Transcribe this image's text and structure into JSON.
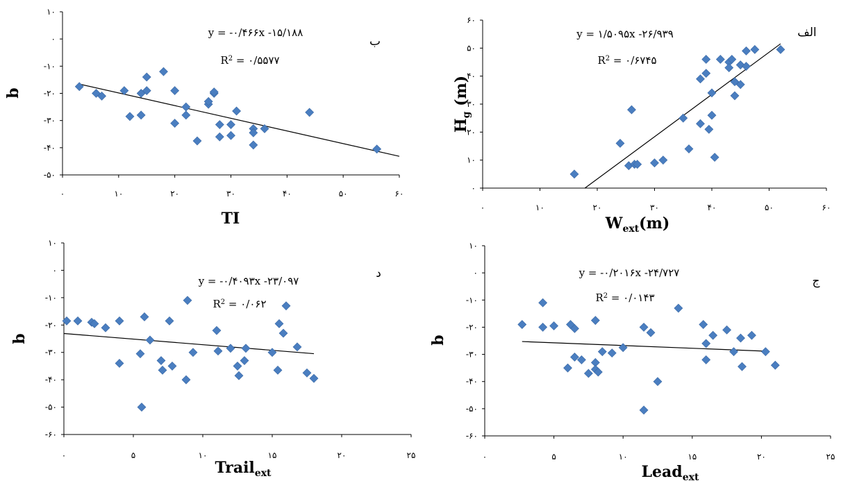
{
  "colors": {
    "marker": "#4a7ec0",
    "marker_stroke": "#3a68a4",
    "line": "#000000",
    "axis": "#000000"
  },
  "chart_data": [
    {
      "id": "b",
      "type": "scatter",
      "panel_label": "ب",
      "xlabel": "TI",
      "ylabel": "b",
      "xlim": [
        0,
        60
      ],
      "ylim": [
        -50,
        10
      ],
      "xticks": [
        0,
        10,
        20,
        30,
        40,
        50,
        60
      ],
      "yticks": [
        10,
        0,
        -10,
        -20,
        -30,
        -40,
        -50
      ],
      "xtick_labels": [
        "۰",
        "۱۰",
        "۲۰",
        "۳۰",
        "۴۰",
        "۵۰",
        "۶۰"
      ],
      "ytick_labels": [
        "۱۰",
        "۰",
        "-۱۰",
        "-۲۰",
        "-۳۰",
        "-۴۰",
        "-۵۰"
      ],
      "equation": "y = -۰/۴۶۶x -۱۵/۱۸۸",
      "r2_prefix": "R",
      "r2_value": " = ۰/۵۵۷۷",
      "trendline": {
        "slope": -0.466,
        "intercept": -15.188,
        "x_range": [
          3,
          60
        ]
      },
      "points": [
        [
          3,
          -17.5
        ],
        [
          6,
          -20
        ],
        [
          7,
          -21
        ],
        [
          11,
          -19
        ],
        [
          12,
          -28.5
        ],
        [
          14,
          -20
        ],
        [
          14,
          -28
        ],
        [
          15,
          -14
        ],
        [
          15,
          -19
        ],
        [
          18,
          -12
        ],
        [
          20,
          -19
        ],
        [
          20,
          -31
        ],
        [
          22,
          -25
        ],
        [
          22,
          -28
        ],
        [
          24,
          -37.5
        ],
        [
          26,
          -24
        ],
        [
          26,
          -23
        ],
        [
          27,
          -20
        ],
        [
          27,
          -19.5
        ],
        [
          28,
          -31.5
        ],
        [
          28,
          -36
        ],
        [
          30,
          -31.5
        ],
        [
          30,
          -35.5
        ],
        [
          31,
          -26.5
        ],
        [
          34,
          -33
        ],
        [
          34,
          -34.5
        ],
        [
          34,
          -39
        ],
        [
          36,
          -33
        ],
        [
          44,
          -27
        ],
        [
          56,
          -40.5
        ]
      ]
    },
    {
      "id": "alef",
      "type": "scatter",
      "panel_label": "الف",
      "xlabel": "W",
      "xlabel_sub": "ext",
      "xlabel_suffix": "(m)",
      "ylabel": "H",
      "ylabel_sub": "g",
      "ylabel_suffix": " (m)",
      "xlim": [
        0,
        60
      ],
      "ylim": [
        0,
        60
      ],
      "xticks": [
        0,
        10,
        20,
        30,
        40,
        50,
        60
      ],
      "yticks": [
        0,
        10,
        20,
        30,
        40,
        50,
        60
      ],
      "xtick_labels": [
        "۰",
        "۱۰",
        "۲۰",
        "۳۰",
        "۴۰",
        "۵۰",
        "۶۰"
      ],
      "ytick_labels": [
        "۰",
        "۱۰",
        "۲۰",
        "۳۰",
        "۴۰",
        "۵۰",
        "۶۰"
      ],
      "equation": "y = ۱/۵۰۹۵x -۲۶/۹۳۹",
      "r2_prefix": "R",
      "r2_value": " = ۰/۶۷۴۵",
      "trendline": {
        "slope": 1.5095,
        "intercept": -26.939,
        "x_range": [
          17.85,
          52
        ]
      },
      "points": [
        [
          16,
          5
        ],
        [
          24,
          16
        ],
        [
          25.5,
          8
        ],
        [
          26,
          28
        ],
        [
          26.5,
          8.5
        ],
        [
          27,
          8.5
        ],
        [
          30,
          9
        ],
        [
          31.5,
          10
        ],
        [
          35,
          25
        ],
        [
          36,
          14
        ],
        [
          38,
          39
        ],
        [
          38,
          23
        ],
        [
          39,
          46
        ],
        [
          39,
          41
        ],
        [
          39.5,
          21
        ],
        [
          40,
          34
        ],
        [
          40,
          26
        ],
        [
          40.5,
          11
        ],
        [
          41.5,
          46
        ],
        [
          43,
          45
        ],
        [
          43,
          43
        ],
        [
          43.5,
          46
        ],
        [
          44,
          38
        ],
        [
          44,
          33
        ],
        [
          45,
          44
        ],
        [
          45,
          37
        ],
        [
          46,
          49
        ],
        [
          46,
          43.5
        ],
        [
          47.5,
          49.5
        ],
        [
          52,
          49.5
        ]
      ]
    },
    {
      "id": "dal",
      "type": "scatter",
      "panel_label": "د",
      "xlabel": "Trail",
      "xlabel_sub": "ext",
      "xlabel_suffix": "",
      "ylabel": "b",
      "xlim": [
        0,
        25
      ],
      "ylim": [
        -60,
        10
      ],
      "xticks": [
        0,
        5,
        10,
        15,
        20,
        25
      ],
      "yticks": [
        10,
        0,
        -10,
        -20,
        -30,
        -40,
        -50,
        -60
      ],
      "xtick_labels": [
        "۰",
        "۵",
        "۱۰",
        "۱۵",
        "۲۰",
        "۲۵"
      ],
      "ytick_labels": [
        "۱۰",
        "۰",
        "-۱۰",
        "-۲۰",
        "-۳۰",
        "-۴۰",
        "-۵۰",
        "-۶۰"
      ],
      "equation": "y = -۰/۴۰۹۳x -۲۳/۰۹۷",
      "r2_prefix": "R",
      "r2_value": " = ۰/۰۶۲",
      "trendline": {
        "slope": -0.4093,
        "intercept": -23.097,
        "x_range": [
          0,
          18
        ]
      },
      "points": [
        [
          0.2,
          -18.5
        ],
        [
          1,
          -18.5
        ],
        [
          2,
          -19
        ],
        [
          2.2,
          -19.5
        ],
        [
          3,
          -21
        ],
        [
          4,
          -18.5
        ],
        [
          4,
          -34
        ],
        [
          5.5,
          -30.5
        ],
        [
          5.8,
          -17
        ],
        [
          6.2,
          -25.5
        ],
        [
          7,
          -33
        ],
        [
          7.1,
          -36.5
        ],
        [
          7.6,
          -18.5
        ],
        [
          7.8,
          -35
        ],
        [
          8.8,
          -40
        ],
        [
          8.9,
          -11
        ],
        [
          9.3,
          -30
        ],
        [
          11,
          -22
        ],
        [
          11.1,
          -29.5
        ],
        [
          12,
          -28.5
        ],
        [
          12.5,
          -35
        ],
        [
          12.6,
          -38.5
        ],
        [
          13,
          -33
        ],
        [
          13.1,
          -28.5
        ],
        [
          15,
          -30
        ],
        [
          15.4,
          -36.5
        ],
        [
          15.5,
          -19.5
        ],
        [
          15.8,
          -23
        ],
        [
          16,
          -13
        ],
        [
          16.8,
          -28
        ],
        [
          17.5,
          -37.5
        ],
        [
          18,
          -39.5
        ],
        [
          5.6,
          -50
        ]
      ]
    },
    {
      "id": "jim",
      "type": "scatter",
      "panel_label": "ج",
      "xlabel": "Lead",
      "xlabel_sub": "ext",
      "xlabel_suffix": "",
      "ylabel": "b",
      "xlim": [
        0,
        25
      ],
      "ylim": [
        -60,
        10
      ],
      "xticks": [
        0,
        5,
        10,
        15,
        20,
        25
      ],
      "yticks": [
        10,
        0,
        -10,
        -20,
        -30,
        -40,
        -50,
        -60
      ],
      "xtick_labels": [
        "۰",
        "۵",
        "۱۰",
        "۱۵",
        "۲۰",
        "۲۵"
      ],
      "ytick_labels": [
        "۱۰",
        "۰",
        "-۱۰",
        "-۲۰",
        "-۳۰",
        "-۴۰",
        "-۵۰",
        "-۶۰"
      ],
      "equation": "y = -۰/۲۰۱۶x -۲۴/۷۲۷",
      "r2_prefix": "R",
      "r2_value": " = ۰/۰۱۴۳",
      "trendline": {
        "slope": -0.2016,
        "intercept": -24.727,
        "x_range": [
          2.7,
          20.5
        ]
      },
      "points": [
        [
          2.7,
          -19
        ],
        [
          4.2,
          -11
        ],
        [
          4.2,
          -20
        ],
        [
          5,
          -19.5
        ],
        [
          6,
          -35
        ],
        [
          6.2,
          -19
        ],
        [
          6.5,
          -20.5
        ],
        [
          6.5,
          -31
        ],
        [
          7,
          -32
        ],
        [
          7.5,
          -37
        ],
        [
          8,
          -17.5
        ],
        [
          8,
          -33
        ],
        [
          8,
          -35.5
        ],
        [
          8.2,
          -36.5
        ],
        [
          8.5,
          -29
        ],
        [
          9.2,
          -29.5
        ],
        [
          10,
          -27.5
        ],
        [
          11.5,
          -20
        ],
        [
          12,
          -22
        ],
        [
          12.5,
          -40
        ],
        [
          14,
          -13
        ],
        [
          15.8,
          -19
        ],
        [
          16,
          -26
        ],
        [
          16,
          -32
        ],
        [
          16.5,
          -23
        ],
        [
          17.5,
          -21
        ],
        [
          18,
          -29
        ],
        [
          18.5,
          -24
        ],
        [
          18.6,
          -34.5
        ],
        [
          19.3,
          -23
        ],
        [
          20.3,
          -29
        ],
        [
          21,
          -34
        ],
        [
          11.5,
          -50.5
        ]
      ]
    }
  ]
}
